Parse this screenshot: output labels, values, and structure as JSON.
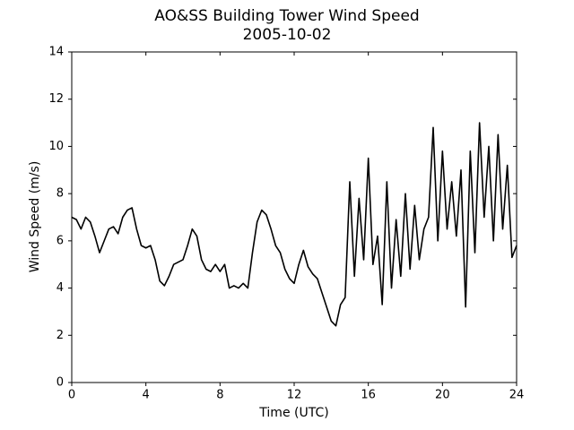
{
  "chart_data": {
    "type": "line",
    "title": "AO&SS Building Tower Wind Speed",
    "subtitle": "2005-10-02",
    "x_label": "Time (UTC)",
    "y_label": "Wind Speed (m/s)",
    "x": [
      0,
      0.25,
      0.5,
      0.75,
      1,
      1.25,
      1.5,
      1.75,
      2,
      2.25,
      2.5,
      2.75,
      3,
      3.25,
      3.5,
      3.75,
      4,
      4.25,
      4.5,
      4.75,
      5,
      5.25,
      5.5,
      5.75,
      6,
      6.25,
      6.5,
      6.75,
      7,
      7.25,
      7.5,
      7.75,
      8,
      8.25,
      8.5,
      8.75,
      9,
      9.25,
      9.5,
      9.75,
      10,
      10.25,
      10.5,
      10.75,
      11,
      11.25,
      11.5,
      11.75,
      12,
      12.25,
      12.5,
      12.75,
      13,
      13.25,
      13.5,
      13.75,
      14,
      14.25,
      14.5,
      14.75,
      15,
      15.25,
      15.5,
      15.75,
      16,
      16.25,
      16.5,
      16.75,
      17,
      17.25,
      17.5,
      17.75,
      18,
      18.25,
      18.5,
      18.75,
      19,
      19.25,
      19.5,
      19.75,
      20,
      20.25,
      20.5,
      20.75,
      21,
      21.25,
      21.5,
      21.75,
      22,
      22.25,
      22.5,
      22.75,
      23,
      23.25,
      23.5,
      23.75,
      24
    ],
    "series": [
      {
        "name": "Wind Speed",
        "color": "#000000",
        "values": [
          7.0,
          6.9,
          6.5,
          7.0,
          6.8,
          6.2,
          5.5,
          6.0,
          6.5,
          6.6,
          6.3,
          7.0,
          7.3,
          7.4,
          6.5,
          5.8,
          5.7,
          5.8,
          5.2,
          4.3,
          4.1,
          4.5,
          5.0,
          5.1,
          5.2,
          5.8,
          6.5,
          6.2,
          5.2,
          4.8,
          4.7,
          5.0,
          4.7,
          5.0,
          4.0,
          4.1,
          4.0,
          4.2,
          4.0,
          5.5,
          6.8,
          7.3,
          7.1,
          6.5,
          5.8,
          5.5,
          4.8,
          4.4,
          4.2,
          5.0,
          5.6,
          4.9,
          4.6,
          4.4,
          3.8,
          3.2,
          2.6,
          2.4,
          3.3,
          3.6,
          8.5,
          4.5,
          7.8,
          5.2,
          9.5,
          5.0,
          6.2,
          3.3,
          8.5,
          4.0,
          6.9,
          4.5,
          8.0,
          4.8,
          7.5,
          5.2,
          6.5,
          7.0,
          10.8,
          6.0,
          9.8,
          6.5,
          8.5,
          6.2,
          9.0,
          3.2,
          9.8,
          5.5,
          11.0,
          7.0,
          10.0,
          6.0,
          10.5,
          6.5,
          9.2,
          5.3,
          5.8
        ]
      }
    ],
    "xlim": [
      0,
      24
    ],
    "xticks": [
      0,
      4,
      8,
      12,
      16,
      20,
      24
    ],
    "ylim": [
      0,
      14
    ],
    "yticks": [
      0,
      2,
      4,
      6,
      8,
      10,
      12,
      14
    ],
    "grid": false
  }
}
